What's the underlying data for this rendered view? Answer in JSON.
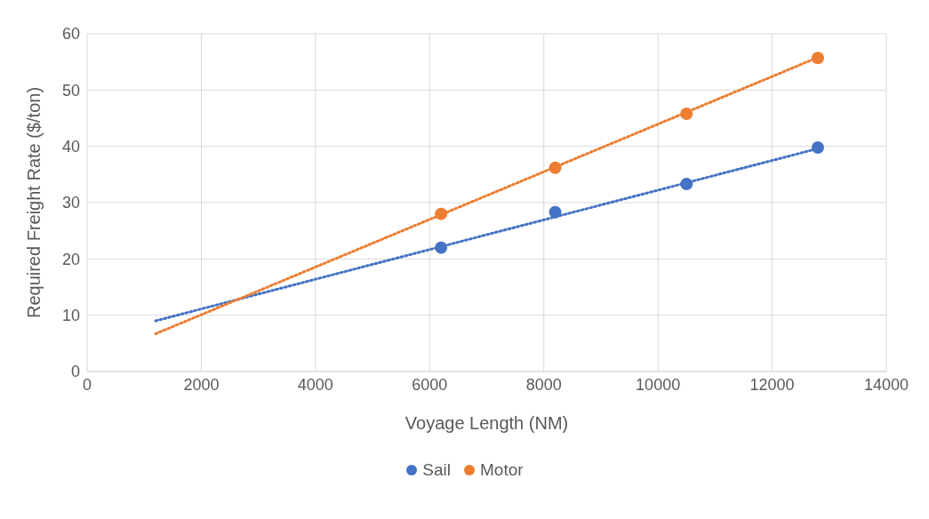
{
  "chart_data": {
    "type": "scatter",
    "xlabel": "Voyage Length (NM)",
    "ylabel": "Required Freight Rate ($/ton)",
    "xlim": [
      0,
      14000
    ],
    "xticks": [
      0,
      2000,
      4000,
      6000,
      8000,
      10000,
      12000,
      14000
    ],
    "ylim": [
      0,
      60
    ],
    "yticks": [
      0,
      10,
      20,
      30,
      40,
      50,
      60
    ],
    "grid": true,
    "legend": "bottom",
    "marker": "circle",
    "series": [
      {
        "name": "Sail",
        "color": "#4472c4",
        "x": [
          6200,
          8200,
          10500,
          12800
        ],
        "values": [
          22,
          28.3,
          33.3,
          39.8
        ]
      },
      {
        "name": "Motor",
        "color": "#ed7d31",
        "x": [
          6200,
          8200,
          10500,
          12800
        ],
        "values": [
          28,
          36.2,
          45.8,
          55.7
        ]
      },
      {
        "type": "line",
        "color": "#4472c4",
        "line_style": "dotted",
        "marker": "none",
        "x": [
          1200,
          12800
        ],
        "values": [
          9,
          39.6
        ]
      },
      {
        "type": "line",
        "color": "#ed7d31",
        "line_style": "dotted",
        "marker": "none",
        "x": [
          1200,
          12800
        ],
        "values": [
          6.7,
          55.8
        ]
      }
    ]
  }
}
